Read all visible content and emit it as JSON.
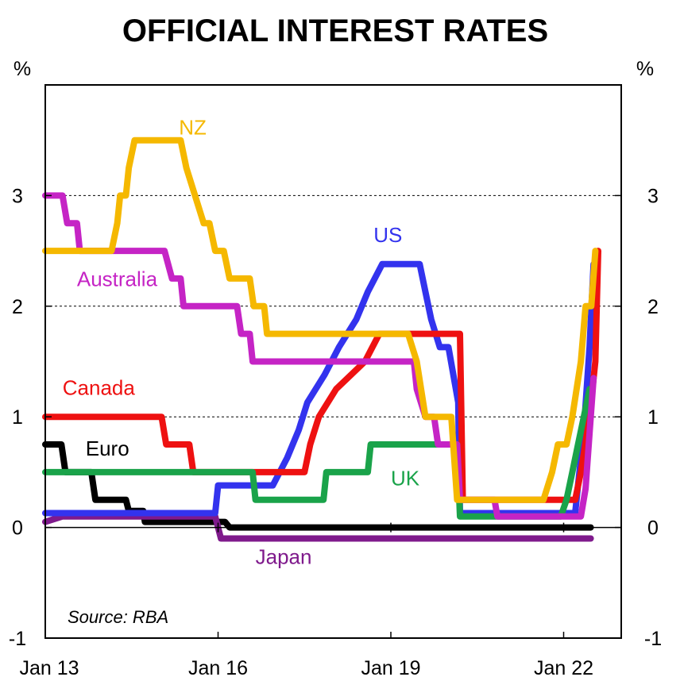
{
  "chart_data": {
    "type": "line",
    "title": "OFFICIAL INTEREST RATES",
    "ylabel_left": "%",
    "ylabel_right": "%",
    "source": "Source: RBA",
    "xlim": [
      2013.0,
      2023.0
    ],
    "ylim": [
      -1,
      4
    ],
    "y_ticks": [
      "-1",
      "0",
      "1",
      "2",
      "3"
    ],
    "x_ticks": [
      {
        "x": 2013.0,
        "label": "Jan 13"
      },
      {
        "x": 2016.0,
        "label": "Jan 16"
      },
      {
        "x": 2019.0,
        "label": "Jan 19"
      },
      {
        "x": 2022.0,
        "label": "Jan 22"
      }
    ],
    "grid_y": [
      1,
      2,
      3
    ],
    "series": [
      {
        "name": "Euro",
        "color": "#000000",
        "label": {
          "text": "Euro",
          "x": 2013.7,
          "y": 0.65
        },
        "points": [
          [
            2013.0,
            0.75
          ],
          [
            2013.28,
            0.75
          ],
          [
            2013.35,
            0.5
          ],
          [
            2013.8,
            0.5
          ],
          [
            2013.87,
            0.25
          ],
          [
            2014.4,
            0.25
          ],
          [
            2014.45,
            0.15
          ],
          [
            2014.7,
            0.15
          ],
          [
            2014.73,
            0.05
          ],
          [
            2016.12,
            0.05
          ],
          [
            2016.2,
            0.0
          ],
          [
            2022.47,
            0.0
          ]
        ]
      },
      {
        "name": "Japan",
        "color": "#7f1a8c",
        "label": {
          "text": "Japan",
          "x": 2016.65,
          "y": -0.33
        },
        "points": [
          [
            2013.0,
            0.05
          ],
          [
            2013.3,
            0.1
          ],
          [
            2015.95,
            0.1
          ],
          [
            2016.05,
            -0.1
          ],
          [
            2022.47,
            -0.1
          ]
        ]
      },
      {
        "name": "US",
        "color": "#3333ee",
        "label": {
          "text": "US",
          "x": 2018.7,
          "y": 2.58
        },
        "points": [
          [
            2013.0,
            0.13
          ],
          [
            2015.95,
            0.13
          ],
          [
            2016.0,
            0.38
          ],
          [
            2016.95,
            0.38
          ],
          [
            2017.2,
            0.63
          ],
          [
            2017.4,
            0.88
          ],
          [
            2017.55,
            1.13
          ],
          [
            2017.85,
            1.38
          ],
          [
            2018.1,
            1.63
          ],
          [
            2018.4,
            1.88
          ],
          [
            2018.6,
            2.13
          ],
          [
            2018.85,
            2.38
          ],
          [
            2019.5,
            2.38
          ],
          [
            2019.6,
            2.13
          ],
          [
            2019.7,
            1.88
          ],
          [
            2019.85,
            1.63
          ],
          [
            2020.0,
            1.63
          ],
          [
            2020.17,
            1.13
          ],
          [
            2020.2,
            0.13
          ],
          [
            2022.2,
            0.13
          ],
          [
            2022.25,
            0.38
          ],
          [
            2022.35,
            0.88
          ],
          [
            2022.45,
            1.63
          ],
          [
            2022.52,
            2.38
          ]
        ]
      },
      {
        "name": "Canada",
        "color": "#ee1111",
        "label": {
          "text": "Canada",
          "x": 2013.3,
          "y": 1.2
        },
        "points": [
          [
            2013.0,
            1.0
          ],
          [
            2015.02,
            1.0
          ],
          [
            2015.1,
            0.75
          ],
          [
            2015.5,
            0.75
          ],
          [
            2015.57,
            0.5
          ],
          [
            2017.5,
            0.5
          ],
          [
            2017.6,
            0.75
          ],
          [
            2017.75,
            1.0
          ],
          [
            2018.05,
            1.25
          ],
          [
            2018.55,
            1.5
          ],
          [
            2018.8,
            1.75
          ],
          [
            2020.2,
            1.75
          ],
          [
            2020.25,
            0.25
          ],
          [
            2022.2,
            0.25
          ],
          [
            2022.3,
            0.5
          ],
          [
            2022.45,
            1.0
          ],
          [
            2022.55,
            1.5
          ],
          [
            2022.6,
            2.5
          ]
        ]
      },
      {
        "name": "UK",
        "color": "#1aa34a",
        "label": {
          "text": "UK",
          "x": 2019.0,
          "y": 0.38
        },
        "points": [
          [
            2013.0,
            0.5
          ],
          [
            2016.6,
            0.5
          ],
          [
            2016.65,
            0.25
          ],
          [
            2017.83,
            0.25
          ],
          [
            2017.88,
            0.5
          ],
          [
            2018.6,
            0.5
          ],
          [
            2018.65,
            0.75
          ],
          [
            2020.15,
            0.75
          ],
          [
            2020.2,
            0.1
          ],
          [
            2021.95,
            0.1
          ],
          [
            2022.05,
            0.25
          ],
          [
            2022.15,
            0.5
          ],
          [
            2022.25,
            0.75
          ],
          [
            2022.35,
            1.0
          ],
          [
            2022.45,
            1.25
          ]
        ]
      },
      {
        "name": "Australia",
        "color": "#c524c5",
        "label": {
          "text": "Australia",
          "x": 2013.55,
          "y": 2.18
        },
        "points": [
          [
            2013.0,
            3.0
          ],
          [
            2013.3,
            3.0
          ],
          [
            2013.38,
            2.75
          ],
          [
            2013.55,
            2.75
          ],
          [
            2013.6,
            2.5
          ],
          [
            2015.07,
            2.5
          ],
          [
            2015.2,
            2.25
          ],
          [
            2015.35,
            2.25
          ],
          [
            2015.4,
            2.0
          ],
          [
            2016.33,
            2.0
          ],
          [
            2016.4,
            1.75
          ],
          [
            2016.55,
            1.75
          ],
          [
            2016.6,
            1.5
          ],
          [
            2019.4,
            1.5
          ],
          [
            2019.45,
            1.25
          ],
          [
            2019.6,
            1.0
          ],
          [
            2019.75,
            1.0
          ],
          [
            2019.82,
            0.75
          ],
          [
            2020.15,
            0.75
          ],
          [
            2020.2,
            0.25
          ],
          [
            2020.8,
            0.25
          ],
          [
            2020.85,
            0.1
          ],
          [
            2022.3,
            0.1
          ],
          [
            2022.38,
            0.35
          ],
          [
            2022.45,
            0.85
          ],
          [
            2022.52,
            1.35
          ]
        ]
      },
      {
        "name": "NZ",
        "color": "#f5b800",
        "label": {
          "text": "NZ",
          "x": 2015.32,
          "y": 3.55
        },
        "points": [
          [
            2013.0,
            2.5
          ],
          [
            2014.15,
            2.5
          ],
          [
            2014.25,
            2.75
          ],
          [
            2014.3,
            3.0
          ],
          [
            2014.4,
            3.0
          ],
          [
            2014.45,
            3.25
          ],
          [
            2014.55,
            3.5
          ],
          [
            2015.35,
            3.5
          ],
          [
            2015.45,
            3.25
          ],
          [
            2015.6,
            3.0
          ],
          [
            2015.75,
            2.75
          ],
          [
            2015.85,
            2.75
          ],
          [
            2015.95,
            2.5
          ],
          [
            2016.1,
            2.5
          ],
          [
            2016.2,
            2.25
          ],
          [
            2016.55,
            2.25
          ],
          [
            2016.62,
            2.0
          ],
          [
            2016.8,
            2.0
          ],
          [
            2016.85,
            1.75
          ],
          [
            2019.3,
            1.75
          ],
          [
            2019.45,
            1.5
          ],
          [
            2019.6,
            1.0
          ],
          [
            2020.05,
            1.0
          ],
          [
            2020.15,
            0.25
          ],
          [
            2021.65,
            0.25
          ],
          [
            2021.8,
            0.5
          ],
          [
            2021.9,
            0.75
          ],
          [
            2022.05,
            0.75
          ],
          [
            2022.15,
            1.0
          ],
          [
            2022.3,
            1.5
          ],
          [
            2022.38,
            2.0
          ],
          [
            2022.48,
            2.0
          ],
          [
            2022.55,
            2.5
          ]
        ]
      }
    ]
  }
}
